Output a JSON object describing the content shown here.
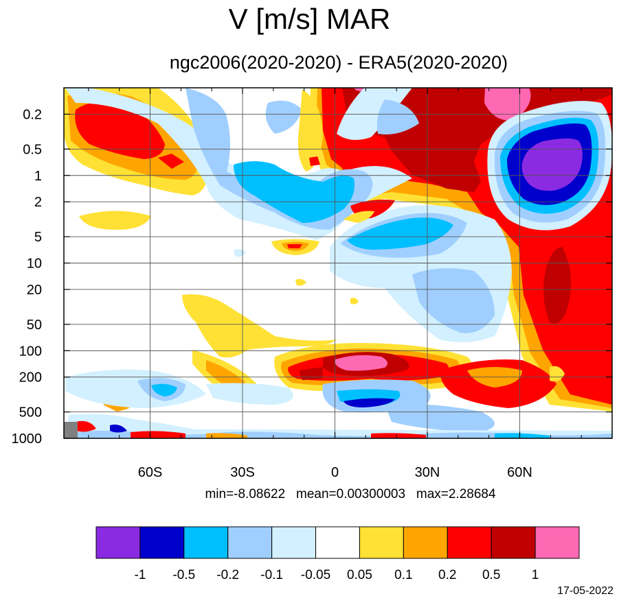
{
  "title": "V [m/s] MAR",
  "subtitle": "ngc2006(2020-2020) - ERA5(2020-2020)",
  "stats": {
    "min": "min=-8.08622",
    "mean": "mean=0.00300003",
    "max": "max=2.28684"
  },
  "date": "17-05-2022",
  "chart_data": {
    "type": "heatmap",
    "title": "V [m/s] MAR",
    "subtitle": "ngc2006(2020-2020) - ERA5(2020-2020)",
    "xlabel": "",
    "ylabel": "",
    "x_ticks": [
      "60S",
      "30S",
      "0",
      "30N",
      "60N"
    ],
    "x_tick_values": [
      -60,
      -30,
      0,
      30,
      60
    ],
    "xlim": [
      -88,
      90
    ],
    "y_ticks": [
      "0.2",
      "0.5",
      "1",
      "2",
      "5",
      "10",
      "20",
      "50",
      "100",
      "200",
      "500",
      "1000"
    ],
    "y_tick_values": [
      0.2,
      0.5,
      1,
      2,
      5,
      10,
      20,
      50,
      100,
      200,
      500,
      1000
    ],
    "ylim": [
      0.1,
      1000
    ],
    "y_scale": "log",
    "y_inverted": true,
    "grid": true,
    "colorbar": {
      "levels": [
        "-1",
        "-0.5",
        "-0.2",
        "-0.1",
        "-0.05",
        "0.05",
        "0.1",
        "0.2",
        "0.5",
        "1"
      ],
      "colors": [
        "#8a2be2",
        "#0000cd",
        "#00bfff",
        "#a0cfff",
        "#d2f0ff",
        "#ffffff",
        "#ffe135",
        "#ffa500",
        "#ff0000",
        "#c00000",
        "#ff69b4"
      ],
      "placement": "bottom"
    },
    "min": -8.08622,
    "mean": 0.00300003,
    "max": 2.28684
  }
}
